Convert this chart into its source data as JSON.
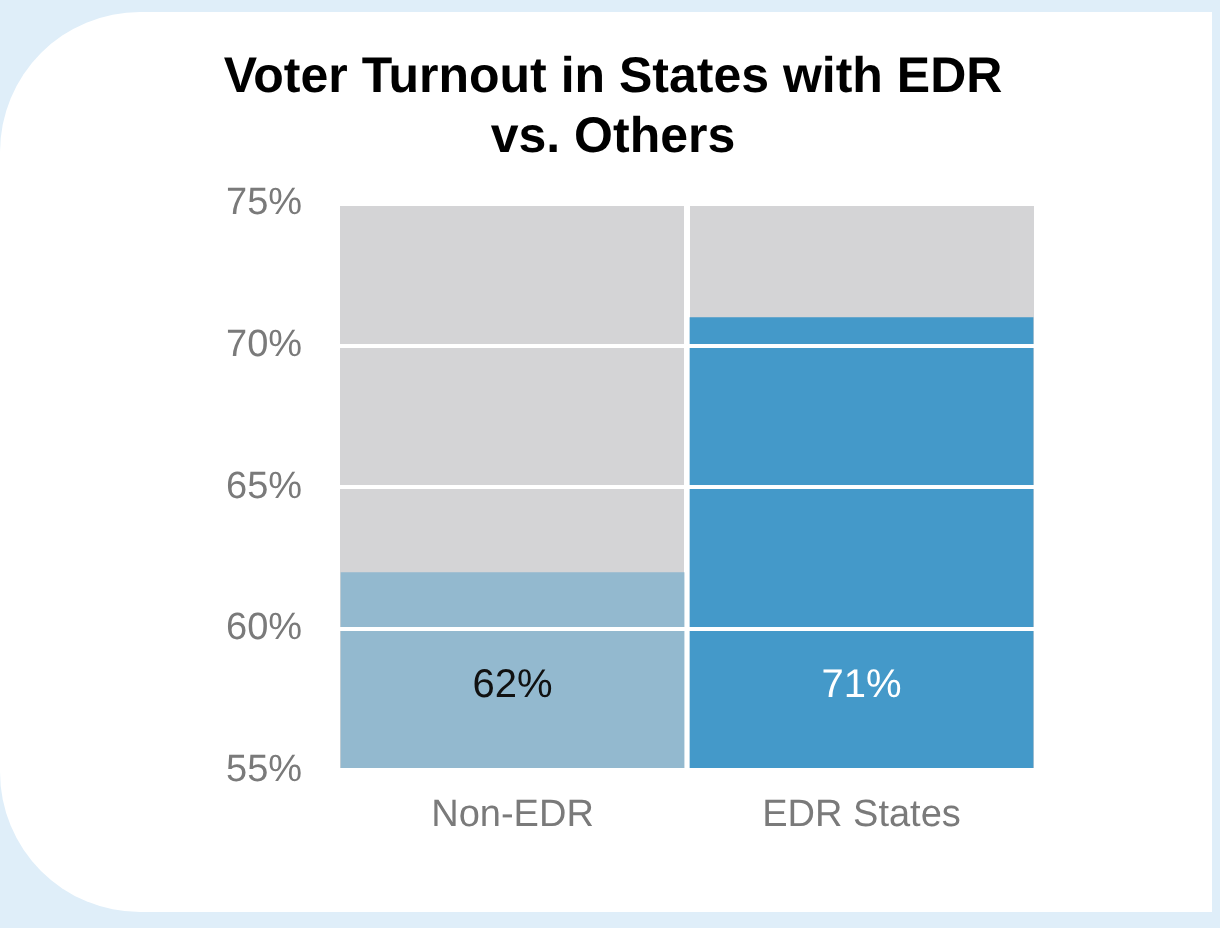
{
  "chart_data": {
    "type": "bar",
    "title": "Voter Turnout in States with EDR vs. Others",
    "categories": [
      "Non-EDR",
      "EDR States"
    ],
    "series": [
      {
        "colors": [
          "#93b9cf",
          "#4499c9"
        ],
        "values": [
          62,
          71
        ],
        "value_labels": [
          "62%",
          "71%"
        ]
      }
    ],
    "ylim": [
      55,
      75
    ],
    "yticks": [
      {
        "value": 55,
        "label": "55%"
      },
      {
        "value": 60,
        "label": "60%"
      },
      {
        "value": 65,
        "label": "65%"
      },
      {
        "value": 70,
        "label": "70%"
      },
      {
        "value": 75,
        "label": "75%"
      }
    ],
    "grid": "y"
  }
}
